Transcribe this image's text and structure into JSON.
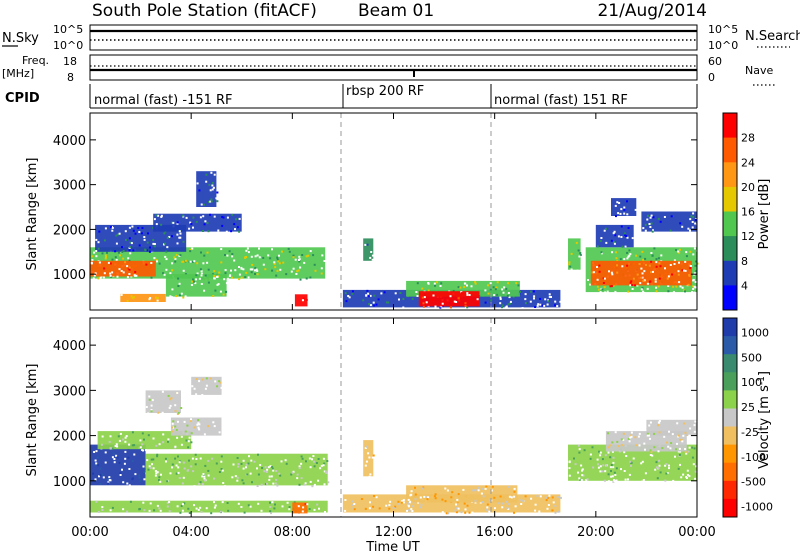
{
  "header": {
    "station": "South Pole Station (fitACF)",
    "beam": "Beam 01",
    "date": "21/Aug/2014"
  },
  "sky_panel": {
    "left_label": "N.Sky",
    "right_label": "N.Search",
    "ticks_left": [
      "10^5",
      "10^0"
    ],
    "ticks_right": [
      "10^5",
      "10^0"
    ]
  },
  "freq_panel": {
    "left_label_top": "Freq.",
    "left_label_unit": "[MHz]",
    "left_ticks": [
      "18",
      "8"
    ],
    "right_label": "Nave",
    "right_ticks": [
      "60",
      "0"
    ]
  },
  "cpid": {
    "label": "CPID",
    "segments": [
      {
        "name": "normal (fast) -151 RF",
        "start_hour": 0,
        "end_hour": 10
      },
      {
        "name": "rbsp 200 RF",
        "start_hour": 10,
        "end_hour": 16
      },
      {
        "name": "normal (fast) 151 RF",
        "start_hour": 16,
        "end_hour": 24
      }
    ]
  },
  "x_axis": {
    "label": "Time UT",
    "ticks": [
      "00:00",
      "04:00",
      "08:00",
      "12:00",
      "16:00",
      "20:00",
      "00:00"
    ]
  },
  "colors": {
    "power": [
      "#0000ff",
      "#1e3cb4",
      "#2b8d5a",
      "#50c850",
      "#e6c800",
      "#ff9614",
      "#ff5a00",
      "#ff0000"
    ],
    "velocity": [
      "#1f3caa",
      "#2a5aa8",
      "#3a8a70",
      "#4aa05a",
      "#8cd24a",
      "#c8c8c8",
      "#f0c060",
      "#ff9600",
      "#ff6e00",
      "#ff2800",
      "#ff0000"
    ]
  },
  "chart_data": [
    {
      "type": "heatmap",
      "title": "",
      "xlabel": "",
      "ylabel": "Slant Range [km]",
      "xlim": [
        0,
        24
      ],
      "ylim": [
        200,
        4600
      ],
      "yticks": [
        "1000",
        "2000",
        "3000",
        "4000"
      ],
      "colorbar": {
        "label": "Power [dB]",
        "ticks": [
          "4",
          "8",
          "12",
          "16",
          "20",
          "24",
          "28"
        ],
        "range": [
          0,
          32
        ]
      },
      "regions": [
        {
          "t0": 0.0,
          "t1": 9.3,
          "r0": 900,
          "r1": 1600,
          "value": 12
        },
        {
          "t0": 0.0,
          "t1": 2.6,
          "r0": 950,
          "r1": 1300,
          "value": 24
        },
        {
          "t0": 0.2,
          "t1": 3.8,
          "r0": 1500,
          "r1": 2100,
          "value": 6
        },
        {
          "t0": 2.5,
          "t1": 6.0,
          "r0": 1950,
          "r1": 2350,
          "value": 5
        },
        {
          "t0": 3.0,
          "t1": 5.4,
          "r0": 500,
          "r1": 1000,
          "value": 14
        },
        {
          "t0": 4.2,
          "t1": 5.0,
          "r0": 2500,
          "r1": 3300,
          "value": 5
        },
        {
          "t0": 8.1,
          "t1": 8.6,
          "r0": 280,
          "r1": 550,
          "value": 28
        },
        {
          "t0": 1.2,
          "t1": 3.0,
          "r0": 380,
          "r1": 560,
          "value": 20
        },
        {
          "t0": 10.0,
          "t1": 18.6,
          "r0": 260,
          "r1": 650,
          "value": 5
        },
        {
          "t0": 12.5,
          "t1": 17.0,
          "r0": 500,
          "r1": 850,
          "value": 13
        },
        {
          "t0": 13.0,
          "t1": 15.4,
          "r0": 280,
          "r1": 620,
          "value": 29
        },
        {
          "t0": 10.8,
          "t1": 11.2,
          "r0": 1300,
          "r1": 1800,
          "value": 8
        },
        {
          "t0": 18.9,
          "t1": 19.4,
          "r0": 1100,
          "r1": 1800,
          "value": 14
        },
        {
          "t0": 19.6,
          "t1": 24.0,
          "r0": 600,
          "r1": 1600,
          "value": 13
        },
        {
          "t0": 19.8,
          "t1": 23.8,
          "r0": 750,
          "r1": 1300,
          "value": 25
        },
        {
          "t0": 20.0,
          "t1": 21.5,
          "r0": 1600,
          "r1": 2100,
          "value": 6
        },
        {
          "t0": 21.8,
          "t1": 24.0,
          "r0": 1950,
          "r1": 2400,
          "value": 5
        },
        {
          "t0": 20.6,
          "t1": 21.6,
          "r0": 2300,
          "r1": 2700,
          "value": 4
        }
      ]
    },
    {
      "type": "heatmap",
      "title": "",
      "xlabel": "Time UT",
      "ylabel": "Slant Range [km]",
      "xlim": [
        0,
        24
      ],
      "ylim": [
        200,
        4600
      ],
      "yticks": [
        "1000",
        "2000",
        "3000",
        "4000"
      ],
      "colorbar": {
        "label": "Velocity [m s",
        "label_sup": "-1",
        "label_end": "]",
        "ticks": [
          "1000",
          "500",
          "100",
          "25",
          "-25",
          "-100",
          "-500",
          "-1000"
        ],
        "range": [
          -1200,
          1200
        ]
      },
      "regions": [
        {
          "t0": 0.0,
          "t1": 2.2,
          "r0": 900,
          "r1": 1800,
          "value": 1000
        },
        {
          "t0": 2.2,
          "t1": 9.4,
          "r0": 900,
          "r1": 1600,
          "value": 200
        },
        {
          "t0": 0.3,
          "t1": 4.0,
          "r0": 1700,
          "r1": 2100,
          "value": 150
        },
        {
          "t0": 2.2,
          "t1": 3.6,
          "r0": 2500,
          "r1": 3000,
          "value": 0
        },
        {
          "t0": 3.2,
          "t1": 5.2,
          "r0": 2000,
          "r1": 2400,
          "value": 60
        },
        {
          "t0": 4.0,
          "t1": 5.2,
          "r0": 2900,
          "r1": 3300,
          "value": -60
        },
        {
          "t0": 0.0,
          "t1": 9.4,
          "r0": 300,
          "r1": 560,
          "value": 150
        },
        {
          "t0": 8.0,
          "t1": 8.6,
          "r0": 280,
          "r1": 520,
          "value": -600
        },
        {
          "t0": 10.0,
          "t1": 18.6,
          "r0": 300,
          "r1": 700,
          "value": -300
        },
        {
          "t0": 12.5,
          "t1": 16.9,
          "r0": 520,
          "r1": 900,
          "value": -120
        },
        {
          "t0": 10.8,
          "t1": 11.2,
          "r0": 1100,
          "r1": 1900,
          "value": -300
        },
        {
          "t0": 18.9,
          "t1": 24.0,
          "r0": 1000,
          "r1": 1800,
          "value": 200
        },
        {
          "t0": 20.4,
          "t1": 23.6,
          "r0": 1650,
          "r1": 2100,
          "value": 0
        },
        {
          "t0": 22.0,
          "t1": 24.0,
          "r0": 2000,
          "r1": 2350,
          "value": 0
        }
      ]
    }
  ]
}
